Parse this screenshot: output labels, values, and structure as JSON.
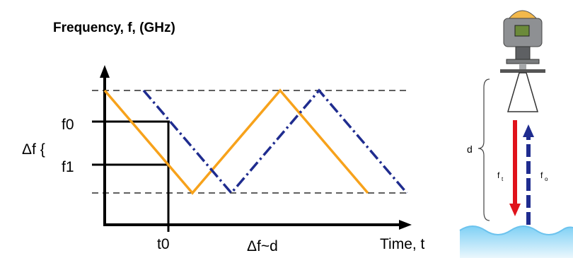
{
  "diagram": {
    "y_axis_label": "Frequency, f, (GHz)",
    "x_axis_label": "Time, t",
    "label_f0": "f0",
    "label_f1": "f1",
    "label_t0": "t0",
    "label_delta_f": "Δf {",
    "label_relation": "Δf~d",
    "series_colors": {
      "transmitted": "#F7A21B",
      "received": "#1F2C8F"
    }
  },
  "sensor": {
    "label_d": "d",
    "label_ft": "f",
    "label_ft_sub": "t",
    "label_fr": "f",
    "label_fr_sub": "o",
    "arrow_colors": {
      "down": "#E0121B",
      "up": "#1F2C8F"
    },
    "water_color": "#BFE6FA"
  }
}
